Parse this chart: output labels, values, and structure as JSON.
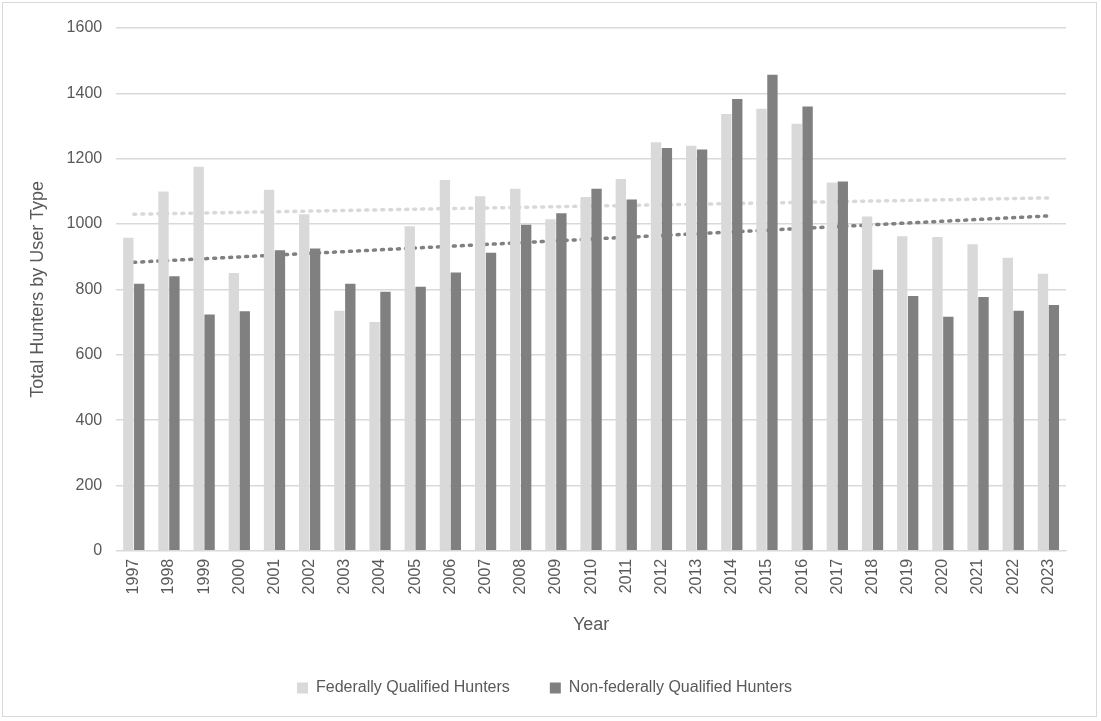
{
  "chart_data": {
    "type": "bar",
    "xlabel": "Year",
    "ylabel": "Total Hunters by User Type",
    "categories": [
      "1997",
      "1998",
      "1999",
      "2000",
      "2001",
      "2002",
      "2003",
      "2004",
      "2005",
      "2006",
      "2007",
      "2008",
      "2009",
      "2010",
      "2011",
      "2012",
      "2013",
      "2014",
      "2015",
      "2016",
      "2017",
      "2018",
      "2019",
      "2020",
      "2021",
      "2022",
      "2023"
    ],
    "series": [
      {
        "name": "Federally Qualified Hunters",
        "color": "#d9d9d9",
        "values": [
          958,
          1100,
          1175,
          850,
          1105,
          1030,
          735,
          700,
          993,
          1135,
          1085,
          1108,
          1015,
          1083,
          1138,
          1250,
          1240,
          1337,
          1353,
          1307,
          1127,
          1023,
          963,
          960,
          938,
          897,
          848
        ]
      },
      {
        "name": "Non-federally Qualified Hunters",
        "color": "#808080",
        "values": [
          817,
          840,
          723,
          733,
          920,
          925,
          817,
          793,
          808,
          852,
          912,
          998,
          1033,
          1108,
          1075,
          1233,
          1228,
          1383,
          1457,
          1360,
          1130,
          860,
          780,
          716,
          777,
          735,
          752
        ]
      },
      {
        "type": "line",
        "color": "#d9d9d9",
        "line_style": "dotted",
        "marker": "none",
        "values": [
          1030,
          null,
          null,
          null,
          null,
          null,
          null,
          null,
          null,
          null,
          null,
          null,
          null,
          null,
          null,
          null,
          null,
          null,
          null,
          null,
          null,
          null,
          null,
          null,
          null,
          null,
          1080
        ]
      },
      {
        "type": "line",
        "color": "#808080",
        "line_style": "dotted",
        "marker": "none",
        "values": [
          883,
          null,
          null,
          null,
          null,
          null,
          null,
          null,
          null,
          null,
          null,
          null,
          null,
          null,
          null,
          null,
          null,
          null,
          null,
          null,
          null,
          null,
          null,
          null,
          null,
          null,
          1025
        ]
      }
    ],
    "ylim": [
      0,
      1600
    ],
    "yticks": [
      0,
      200,
      400,
      600,
      800,
      1000,
      1200,
      1400,
      1600
    ],
    "grid": "y",
    "legend": "bottom"
  }
}
